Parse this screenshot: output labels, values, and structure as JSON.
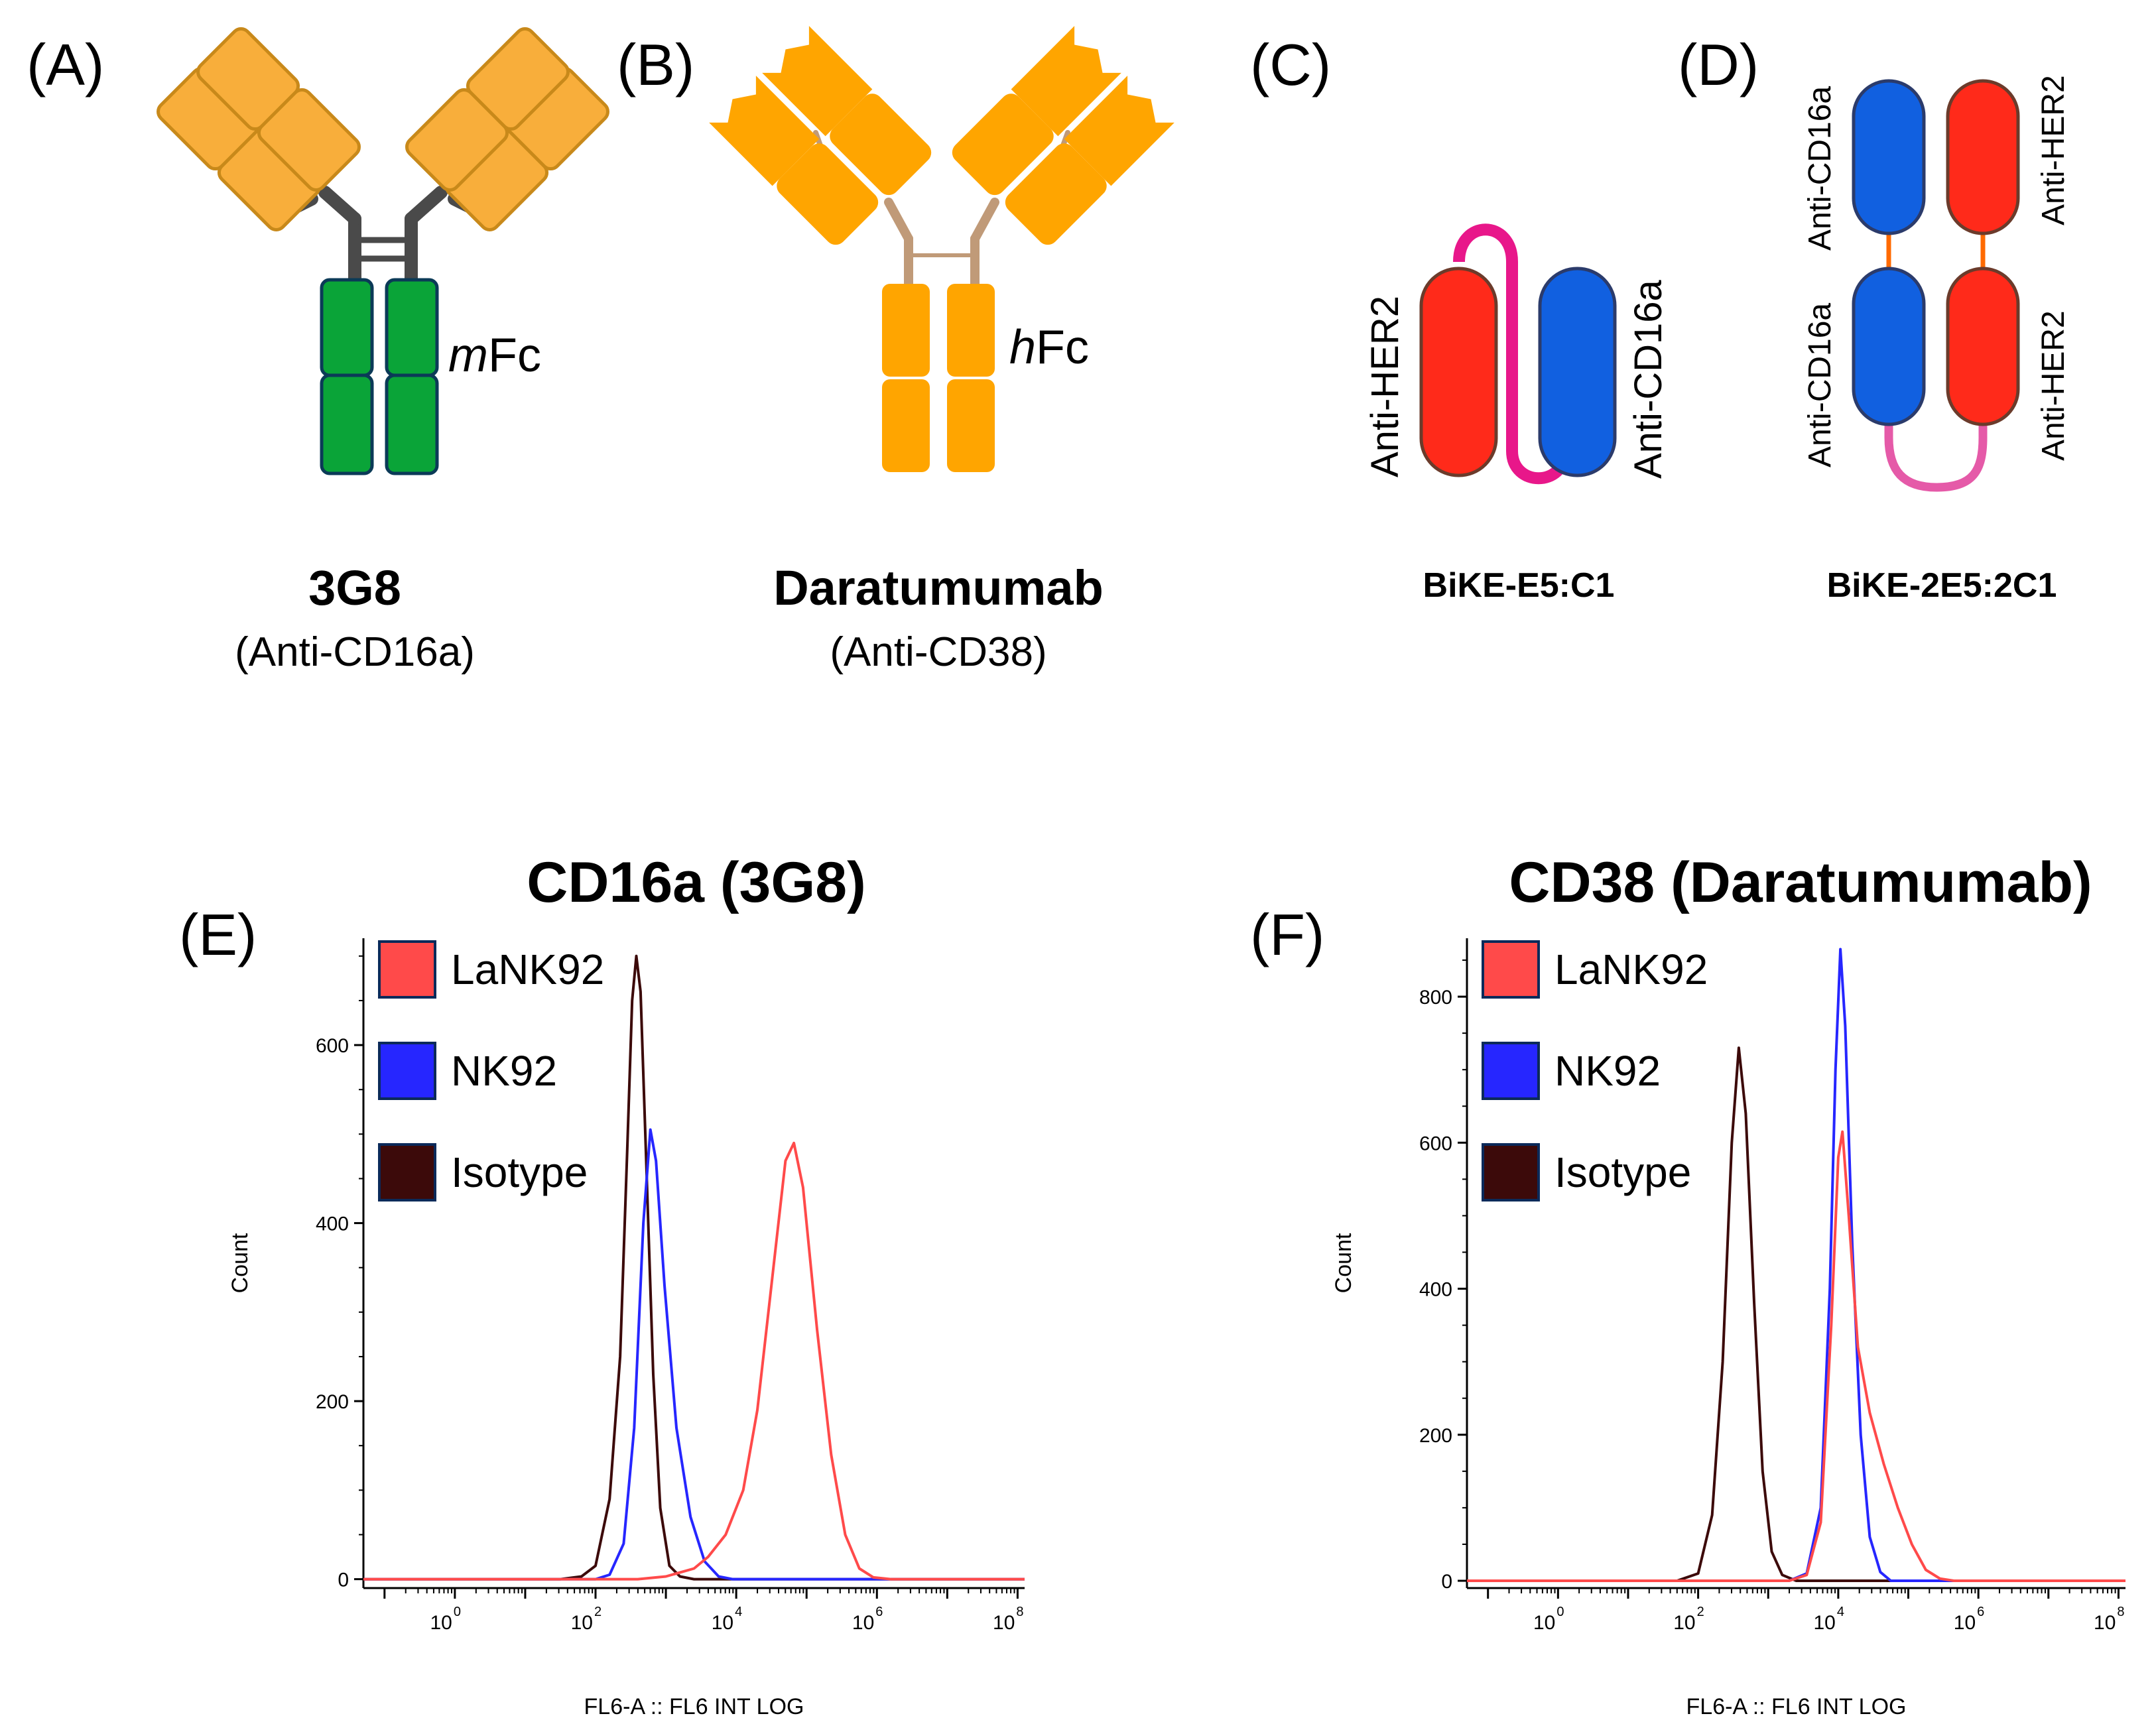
{
  "panels": {
    "a": {
      "label": "(A)",
      "fc_prefix": "m",
      "fc_suffix": "Fc",
      "name": "3G8",
      "target": "(Anti-CD16a)"
    },
    "b": {
      "label": "(B)",
      "fc_prefix": "h",
      "fc_suffix": "Fc",
      "name": "Daratumumab",
      "target": "(Anti-CD38)"
    },
    "c": {
      "label": "(C)",
      "domain_left": "Anti-HER2",
      "domain_right": "Anti-CD16a",
      "name": "BiKE-E5:C1"
    },
    "d": {
      "label": "(D)",
      "top_left": "Anti-CD16a",
      "top_right": "Anti-HER2",
      "bottom_left": "Anti-CD16a",
      "bottom_right": "Anti-HER2",
      "name": "BiKE-2E5:2C1"
    },
    "e": {
      "label": "(E)"
    },
    "f": {
      "label": "(F)"
    }
  },
  "colors": {
    "fab_orange": "#f8ae3b",
    "fab_orange_stroke": "#c8891a",
    "hfc_orange": "#ffa500",
    "mfc_green": "#0aa438",
    "mfc_stroke": "#0b3a57",
    "hinge_dark": "#4a4a4a",
    "hinge_tan": "#c09a78",
    "her2_red": "#ff2a1a",
    "cd16a_blue": "#1160e0",
    "linker_pink": "#e8178a",
    "lank92": "#ff4a4a",
    "nk92": "#2626ff",
    "isotype": "#3c0a0a"
  },
  "chart_data": [
    {
      "type": "line",
      "title": "CD16a (3G8)",
      "xlabel": "FL6-A :: FL6 INT LOG",
      "ylabel": "Count",
      "xscale": "log",
      "xlim": [
        -1.3,
        8.1
      ],
      "ylim": [
        -10,
        720
      ],
      "yticks": [
        0,
        200,
        400,
        600
      ],
      "xtick_base": "10",
      "xtick_exponents": [
        "0",
        "2",
        "4",
        "6",
        "8"
      ],
      "legend": [
        "LaNK92",
        "NK92",
        "Isotype"
      ],
      "legend_position": "top-left",
      "series": [
        {
          "name": "Isotype",
          "color_key": "isotype",
          "points": [
            [
              -1.3,
              0
            ],
            [
              1.5,
              0
            ],
            [
              1.8,
              3
            ],
            [
              2.0,
              15
            ],
            [
              2.2,
              90
            ],
            [
              2.35,
              250
            ],
            [
              2.45,
              480
            ],
            [
              2.52,
              650
            ],
            [
              2.58,
              700
            ],
            [
              2.64,
              660
            ],
            [
              2.72,
              470
            ],
            [
              2.82,
              230
            ],
            [
              2.92,
              80
            ],
            [
              3.05,
              15
            ],
            [
              3.2,
              3
            ],
            [
              3.4,
              0
            ],
            [
              8.1,
              0
            ]
          ]
        },
        {
          "name": "NK92",
          "color_key": "nk92",
          "points": [
            [
              -1.3,
              0
            ],
            [
              2.0,
              0
            ],
            [
              2.2,
              5
            ],
            [
              2.4,
              40
            ],
            [
              2.55,
              170
            ],
            [
              2.68,
              400
            ],
            [
              2.78,
              505
            ],
            [
              2.86,
              470
            ],
            [
              2.98,
              330
            ],
            [
              3.15,
              170
            ],
            [
              3.35,
              70
            ],
            [
              3.55,
              20
            ],
            [
              3.75,
              3
            ],
            [
              3.95,
              0
            ],
            [
              8.1,
              0
            ]
          ]
        },
        {
          "name": "LaNK92",
          "color_key": "lank92",
          "points": [
            [
              -1.3,
              0
            ],
            [
              2.6,
              0
            ],
            [
              3.0,
              3
            ],
            [
              3.4,
              12
            ],
            [
              3.6,
              25
            ],
            [
              3.85,
              50
            ],
            [
              4.1,
              100
            ],
            [
              4.3,
              190
            ],
            [
              4.5,
              330
            ],
            [
              4.7,
              470
            ],
            [
              4.82,
              490
            ],
            [
              4.95,
              440
            ],
            [
              5.15,
              280
            ],
            [
              5.35,
              140
            ],
            [
              5.55,
              50
            ],
            [
              5.75,
              12
            ],
            [
              5.95,
              2
            ],
            [
              6.2,
              0
            ],
            [
              8.1,
              0
            ]
          ]
        }
      ]
    },
    {
      "type": "line",
      "title": "CD38 (Daratumumab)",
      "xlabel": "FL6-A :: FL6 INT LOG",
      "ylabel": "Count",
      "xscale": "log",
      "xlim": [
        -1.3,
        8.1
      ],
      "ylim": [
        -10,
        880
      ],
      "yticks": [
        0,
        200,
        400,
        600,
        800
      ],
      "xtick_base": "10",
      "xtick_exponents": [
        "0",
        "2",
        "4",
        "6",
        "8"
      ],
      "legend": [
        "LaNK92",
        "NK92",
        "Isotype"
      ],
      "legend_position": "top-left",
      "series": [
        {
          "name": "Isotype",
          "color_key": "isotype",
          "points": [
            [
              -1.3,
              0
            ],
            [
              1.7,
              0
            ],
            [
              2.0,
              10
            ],
            [
              2.2,
              90
            ],
            [
              2.35,
              300
            ],
            [
              2.48,
              600
            ],
            [
              2.58,
              730
            ],
            [
              2.68,
              640
            ],
            [
              2.8,
              380
            ],
            [
              2.92,
              150
            ],
            [
              3.05,
              40
            ],
            [
              3.2,
              8
            ],
            [
              3.4,
              0
            ],
            [
              8.1,
              0
            ]
          ]
        },
        {
          "name": "NK92",
          "color_key": "nk92",
          "points": [
            [
              -1.3,
              0
            ],
            [
              3.3,
              0
            ],
            [
              3.55,
              10
            ],
            [
              3.75,
              100
            ],
            [
              3.88,
              400
            ],
            [
              3.96,
              700
            ],
            [
              4.03,
              865
            ],
            [
              4.1,
              760
            ],
            [
              4.2,
              460
            ],
            [
              4.32,
              200
            ],
            [
              4.45,
              60
            ],
            [
              4.6,
              12
            ],
            [
              4.75,
              0
            ],
            [
              8.1,
              0
            ]
          ]
        },
        {
          "name": "LaNK92",
          "color_key": "lank92",
          "points": [
            [
              -1.3,
              0
            ],
            [
              3.3,
              0
            ],
            [
              3.55,
              8
            ],
            [
              3.75,
              80
            ],
            [
              3.9,
              350
            ],
            [
              4.0,
              580
            ],
            [
              4.06,
              615
            ],
            [
              4.15,
              500
            ],
            [
              4.28,
              320
            ],
            [
              4.45,
              230
            ],
            [
              4.65,
              160
            ],
            [
              4.85,
              100
            ],
            [
              5.05,
              50
            ],
            [
              5.25,
              15
            ],
            [
              5.45,
              3
            ],
            [
              5.65,
              0
            ],
            [
              8.1,
              0
            ]
          ]
        }
      ]
    }
  ]
}
